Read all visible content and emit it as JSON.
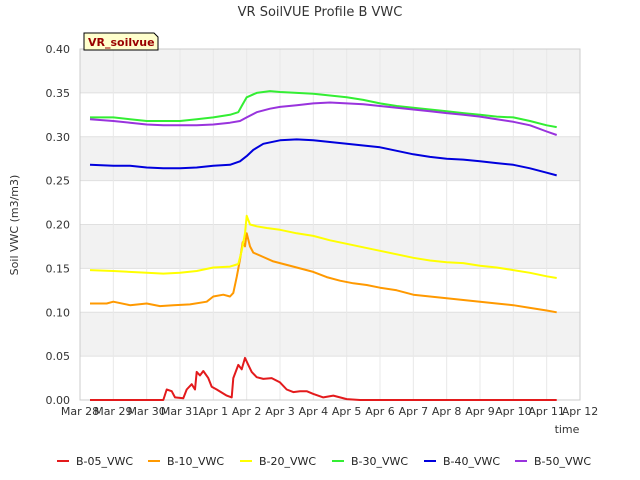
{
  "chart_data": {
    "type": "line",
    "title": "VR SoilVUE Profile B VWC",
    "xlabel": "time",
    "ylabel": "Soil VWC (m3/m3)",
    "tag": "VR_soilvue",
    "ylim": [
      0,
      0.4
    ],
    "yticks": [
      "0.00",
      "0.05",
      "0.10",
      "0.15",
      "0.20",
      "0.25",
      "0.30",
      "0.35",
      "0.40"
    ],
    "xlim": [
      0,
      15
    ],
    "xticks": [
      "Mar 28",
      "Mar 29",
      "Mar 30",
      "Mar 31",
      "Apr 1",
      "Apr 2",
      "Apr 3",
      "Apr 4",
      "Apr 5",
      "Apr 6",
      "Apr 7",
      "Apr 8",
      "Apr 9",
      "Apr 10",
      "Apr 11",
      "Apr 12"
    ],
    "x_unit": "days since Mar 28",
    "grid": true,
    "legend_position": "bottom",
    "series": [
      {
        "name": "B-05_VWC",
        "color": "#e31a1c",
        "points": [
          [
            0.3,
            0
          ],
          [
            2.5,
            0
          ],
          [
            2.6,
            0.012
          ],
          [
            2.75,
            0.01
          ],
          [
            2.85,
            0.003
          ],
          [
            3.1,
            0.002
          ],
          [
            3.2,
            0.012
          ],
          [
            3.35,
            0.018
          ],
          [
            3.45,
            0.012
          ],
          [
            3.5,
            0.032
          ],
          [
            3.6,
            0.028
          ],
          [
            3.7,
            0.033
          ],
          [
            3.85,
            0.025
          ],
          [
            3.95,
            0.015
          ],
          [
            4.1,
            0.012
          ],
          [
            4.4,
            0.005
          ],
          [
            4.55,
            0.003
          ],
          [
            4.6,
            0.025
          ],
          [
            4.75,
            0.04
          ],
          [
            4.85,
            0.035
          ],
          [
            4.95,
            0.048
          ],
          [
            5.05,
            0.04
          ],
          [
            5.15,
            0.032
          ],
          [
            5.3,
            0.026
          ],
          [
            5.5,
            0.024
          ],
          [
            5.75,
            0.025
          ],
          [
            6.0,
            0.02
          ],
          [
            6.2,
            0.012
          ],
          [
            6.4,
            0.009
          ],
          [
            6.6,
            0.01
          ],
          [
            6.8,
            0.01
          ],
          [
            7.0,
            0.007
          ],
          [
            7.3,
            0.003
          ],
          [
            7.6,
            0.005
          ],
          [
            7.8,
            0.003
          ],
          [
            8.0,
            0.001
          ],
          [
            8.4,
            0
          ],
          [
            14.3,
            0
          ]
        ]
      },
      {
        "name": "B-10_VWC",
        "color": "#ff9900",
        "points": [
          [
            0.3,
            0.11
          ],
          [
            0.8,
            0.11
          ],
          [
            1.0,
            0.112
          ],
          [
            1.5,
            0.108
          ],
          [
            2.0,
            0.11
          ],
          [
            2.4,
            0.107
          ],
          [
            2.8,
            0.108
          ],
          [
            3.3,
            0.109
          ],
          [
            3.8,
            0.112
          ],
          [
            4.0,
            0.118
          ],
          [
            4.3,
            0.12
          ],
          [
            4.5,
            0.118
          ],
          [
            4.6,
            0.122
          ],
          [
            4.7,
            0.14
          ],
          [
            4.8,
            0.16
          ],
          [
            4.88,
            0.18
          ],
          [
            4.95,
            0.175
          ],
          [
            5.0,
            0.19
          ],
          [
            5.1,
            0.175
          ],
          [
            5.2,
            0.168
          ],
          [
            5.5,
            0.163
          ],
          [
            5.8,
            0.158
          ],
          [
            6.2,
            0.154
          ],
          [
            6.6,
            0.15
          ],
          [
            7.0,
            0.146
          ],
          [
            7.4,
            0.14
          ],
          [
            7.8,
            0.136
          ],
          [
            8.2,
            0.133
          ],
          [
            8.6,
            0.131
          ],
          [
            9.0,
            0.128
          ],
          [
            9.5,
            0.125
          ],
          [
            10.0,
            0.12
          ],
          [
            10.5,
            0.118
          ],
          [
            11.0,
            0.116
          ],
          [
            11.5,
            0.114
          ],
          [
            12.0,
            0.112
          ],
          [
            12.5,
            0.11
          ],
          [
            13.0,
            0.108
          ],
          [
            13.5,
            0.105
          ],
          [
            14.0,
            0.102
          ],
          [
            14.3,
            0.1
          ]
        ]
      },
      {
        "name": "B-20_VWC",
        "color": "#ffff00",
        "points": [
          [
            0.3,
            0.148
          ],
          [
            1.0,
            0.147
          ],
          [
            2.0,
            0.145
          ],
          [
            2.5,
            0.144
          ],
          [
            3.0,
            0.145
          ],
          [
            3.5,
            0.147
          ],
          [
            4.0,
            0.151
          ],
          [
            4.5,
            0.152
          ],
          [
            4.75,
            0.155
          ],
          [
            4.85,
            0.17
          ],
          [
            4.95,
            0.19
          ],
          [
            5.0,
            0.21
          ],
          [
            5.1,
            0.2
          ],
          [
            5.3,
            0.198
          ],
          [
            5.6,
            0.196
          ],
          [
            6.0,
            0.194
          ],
          [
            6.5,
            0.19
          ],
          [
            7.0,
            0.187
          ],
          [
            7.5,
            0.182
          ],
          [
            8.0,
            0.178
          ],
          [
            8.5,
            0.174
          ],
          [
            9.0,
            0.17
          ],
          [
            9.5,
            0.166
          ],
          [
            10.0,
            0.162
          ],
          [
            10.5,
            0.159
          ],
          [
            11.0,
            0.157
          ],
          [
            11.5,
            0.156
          ],
          [
            12.0,
            0.153
          ],
          [
            12.5,
            0.151
          ],
          [
            13.0,
            0.148
          ],
          [
            13.5,
            0.145
          ],
          [
            14.0,
            0.141
          ],
          [
            14.3,
            0.139
          ]
        ]
      },
      {
        "name": "B-30_VWC",
        "color": "#33ee33",
        "points": [
          [
            0.3,
            0.322
          ],
          [
            1.0,
            0.322
          ],
          [
            1.5,
            0.32
          ],
          [
            2.0,
            0.318
          ],
          [
            2.5,
            0.318
          ],
          [
            3.0,
            0.318
          ],
          [
            3.5,
            0.32
          ],
          [
            4.0,
            0.322
          ],
          [
            4.5,
            0.325
          ],
          [
            4.75,
            0.328
          ],
          [
            4.85,
            0.335
          ],
          [
            5.0,
            0.345
          ],
          [
            5.3,
            0.35
          ],
          [
            5.7,
            0.352
          ],
          [
            6.0,
            0.351
          ],
          [
            6.5,
            0.35
          ],
          [
            7.0,
            0.349
          ],
          [
            7.5,
            0.347
          ],
          [
            8.0,
            0.345
          ],
          [
            8.5,
            0.342
          ],
          [
            9.0,
            0.338
          ],
          [
            9.5,
            0.335
          ],
          [
            10.0,
            0.333
          ],
          [
            10.5,
            0.331
          ],
          [
            11.0,
            0.329
          ],
          [
            11.5,
            0.327
          ],
          [
            12.0,
            0.325
          ],
          [
            12.5,
            0.323
          ],
          [
            13.0,
            0.322
          ],
          [
            13.5,
            0.318
          ],
          [
            14.0,
            0.313
          ],
          [
            14.3,
            0.311
          ]
        ]
      },
      {
        "name": "B-40_VWC",
        "color": "#0000dd",
        "points": [
          [
            0.3,
            0.268
          ],
          [
            1.0,
            0.267
          ],
          [
            1.5,
            0.267
          ],
          [
            2.0,
            0.265
          ],
          [
            2.5,
            0.264
          ],
          [
            3.0,
            0.264
          ],
          [
            3.5,
            0.265
          ],
          [
            4.0,
            0.267
          ],
          [
            4.5,
            0.268
          ],
          [
            4.8,
            0.272
          ],
          [
            5.0,
            0.278
          ],
          [
            5.2,
            0.285
          ],
          [
            5.5,
            0.292
          ],
          [
            6.0,
            0.296
          ],
          [
            6.5,
            0.297
          ],
          [
            7.0,
            0.296
          ],
          [
            7.5,
            0.294
          ],
          [
            8.0,
            0.292
          ],
          [
            8.5,
            0.29
          ],
          [
            9.0,
            0.288
          ],
          [
            9.5,
            0.284
          ],
          [
            10.0,
            0.28
          ],
          [
            10.5,
            0.277
          ],
          [
            11.0,
            0.275
          ],
          [
            11.5,
            0.274
          ],
          [
            12.0,
            0.272
          ],
          [
            12.5,
            0.27
          ],
          [
            13.0,
            0.268
          ],
          [
            13.5,
            0.264
          ],
          [
            14.0,
            0.259
          ],
          [
            14.3,
            0.256
          ]
        ]
      },
      {
        "name": "B-50_VWC",
        "color": "#9933dd",
        "points": [
          [
            0.3,
            0.32
          ],
          [
            1.0,
            0.318
          ],
          [
            1.5,
            0.316
          ],
          [
            2.0,
            0.314
          ],
          [
            2.5,
            0.313
          ],
          [
            3.0,
            0.313
          ],
          [
            3.5,
            0.313
          ],
          [
            4.0,
            0.314
          ],
          [
            4.5,
            0.316
          ],
          [
            4.8,
            0.318
          ],
          [
            5.0,
            0.322
          ],
          [
            5.3,
            0.328
          ],
          [
            5.7,
            0.332
          ],
          [
            6.0,
            0.334
          ],
          [
            6.5,
            0.336
          ],
          [
            7.0,
            0.338
          ],
          [
            7.5,
            0.339
          ],
          [
            8.0,
            0.338
          ],
          [
            8.5,
            0.337
          ],
          [
            9.0,
            0.335
          ],
          [
            9.5,
            0.333
          ],
          [
            10.0,
            0.331
          ],
          [
            10.5,
            0.329
          ],
          [
            11.0,
            0.327
          ],
          [
            11.5,
            0.325
          ],
          [
            12.0,
            0.323
          ],
          [
            12.5,
            0.32
          ],
          [
            13.0,
            0.317
          ],
          [
            13.5,
            0.313
          ],
          [
            14.0,
            0.306
          ],
          [
            14.3,
            0.302
          ]
        ]
      }
    ]
  }
}
